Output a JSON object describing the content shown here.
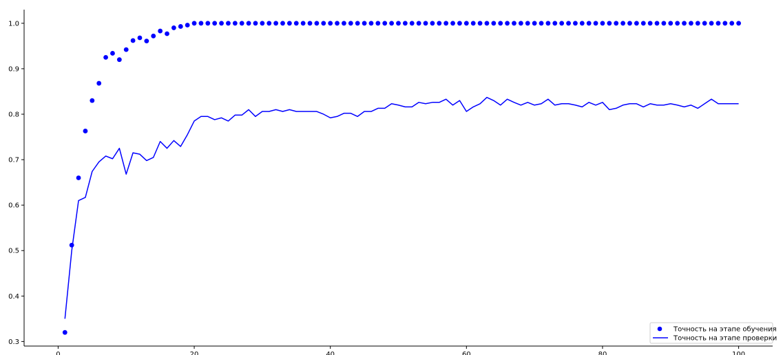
{
  "chart_data": {
    "type": "line",
    "title": "",
    "xlabel": "",
    "ylabel": "",
    "xlim": [
      -5,
      105
    ],
    "ylim": [
      0.29,
      1.03
    ],
    "xticks": [
      0,
      20,
      40,
      60,
      80,
      100
    ],
    "yticks": [
      0.3,
      0.4,
      0.5,
      0.6,
      0.7,
      0.8,
      0.9,
      1.0
    ],
    "grid": false,
    "legend_position": "bottom-right",
    "series": [
      {
        "name": "Точность на этапе обучения",
        "style": "dots",
        "color": "#0000ff",
        "x": [
          1,
          2,
          3,
          4,
          5,
          6,
          7,
          8,
          9,
          10,
          11,
          12,
          13,
          14,
          15,
          16,
          17,
          18,
          19,
          20,
          21,
          22,
          23,
          24,
          25,
          26,
          27,
          28,
          29,
          30,
          31,
          32,
          33,
          34,
          35,
          36,
          37,
          38,
          39,
          40,
          41,
          42,
          43,
          44,
          45,
          46,
          47,
          48,
          49,
          50,
          51,
          52,
          53,
          54,
          55,
          56,
          57,
          58,
          59,
          60,
          61,
          62,
          63,
          64,
          65,
          66,
          67,
          68,
          69,
          70,
          71,
          72,
          73,
          74,
          75,
          76,
          77,
          78,
          79,
          80,
          81,
          82,
          83,
          84,
          85,
          86,
          87,
          88,
          89,
          90,
          91,
          92,
          93,
          94,
          95,
          96,
          97,
          98,
          99,
          100
        ],
        "y": [
          0.32,
          0.512,
          0.66,
          0.763,
          0.83,
          0.868,
          0.925,
          0.934,
          0.92,
          0.942,
          0.962,
          0.968,
          0.961,
          0.972,
          0.983,
          0.977,
          0.99,
          0.993,
          0.996,
          1.0,
          1.0,
          1.0,
          1.0,
          1.0,
          1.0,
          1.0,
          1.0,
          1.0,
          1.0,
          1.0,
          1.0,
          1.0,
          1.0,
          1.0,
          1.0,
          1.0,
          1.0,
          1.0,
          1.0,
          1.0,
          1.0,
          1.0,
          1.0,
          1.0,
          1.0,
          1.0,
          1.0,
          1.0,
          1.0,
          1.0,
          1.0,
          1.0,
          1.0,
          1.0,
          1.0,
          1.0,
          1.0,
          1.0,
          1.0,
          1.0,
          1.0,
          1.0,
          1.0,
          1.0,
          1.0,
          1.0,
          1.0,
          1.0,
          1.0,
          1.0,
          1.0,
          1.0,
          1.0,
          1.0,
          1.0,
          1.0,
          1.0,
          1.0,
          1.0,
          1.0,
          1.0,
          1.0,
          1.0,
          1.0,
          1.0,
          1.0,
          1.0,
          1.0,
          1.0,
          1.0,
          1.0,
          1.0,
          1.0,
          1.0,
          1.0,
          1.0,
          1.0,
          1.0,
          1.0,
          1.0
        ]
      },
      {
        "name": "Точность на этапе проверки",
        "style": "line",
        "color": "#0000ff",
        "x": [
          1,
          2,
          3,
          4,
          5,
          6,
          7,
          8,
          9,
          10,
          11,
          12,
          13,
          14,
          15,
          16,
          17,
          18,
          19,
          20,
          21,
          22,
          23,
          24,
          25,
          26,
          27,
          28,
          29,
          30,
          31,
          32,
          33,
          34,
          35,
          36,
          37,
          38,
          39,
          40,
          41,
          42,
          43,
          44,
          45,
          46,
          47,
          48,
          49,
          50,
          51,
          52,
          53,
          54,
          55,
          56,
          57,
          58,
          59,
          60,
          61,
          62,
          63,
          64,
          65,
          66,
          67,
          68,
          69,
          70,
          71,
          72,
          73,
          74,
          75,
          76,
          77,
          78,
          79,
          80,
          81,
          82,
          83,
          84,
          85,
          86,
          87,
          88,
          89,
          90,
          91,
          92,
          93,
          94,
          95,
          96,
          97,
          98,
          99,
          100
        ],
        "y": [
          0.35,
          0.5,
          0.61,
          0.617,
          0.674,
          0.695,
          0.708,
          0.702,
          0.725,
          0.668,
          0.715,
          0.712,
          0.698,
          0.705,
          0.74,
          0.725,
          0.742,
          0.729,
          0.755,
          0.785,
          0.795,
          0.795,
          0.788,
          0.792,
          0.785,
          0.798,
          0.798,
          0.81,
          0.795,
          0.806,
          0.806,
          0.81,
          0.806,
          0.81,
          0.806,
          0.806,
          0.806,
          0.806,
          0.8,
          0.792,
          0.795,
          0.802,
          0.802,
          0.795,
          0.806,
          0.806,
          0.813,
          0.813,
          0.823,
          0.82,
          0.816,
          0.816,
          0.826,
          0.823,
          0.826,
          0.826,
          0.833,
          0.82,
          0.83,
          0.806,
          0.816,
          0.823,
          0.837,
          0.83,
          0.82,
          0.833,
          0.826,
          0.82,
          0.826,
          0.82,
          0.823,
          0.833,
          0.82,
          0.823,
          0.823,
          0.82,
          0.816,
          0.826,
          0.82,
          0.826,
          0.81,
          0.813,
          0.82,
          0.823,
          0.823,
          0.816,
          0.823,
          0.82,
          0.82,
          0.823,
          0.82,
          0.816,
          0.82,
          0.813,
          0.823,
          0.833,
          0.823,
          0.823,
          0.823,
          0.823
        ]
      }
    ]
  }
}
